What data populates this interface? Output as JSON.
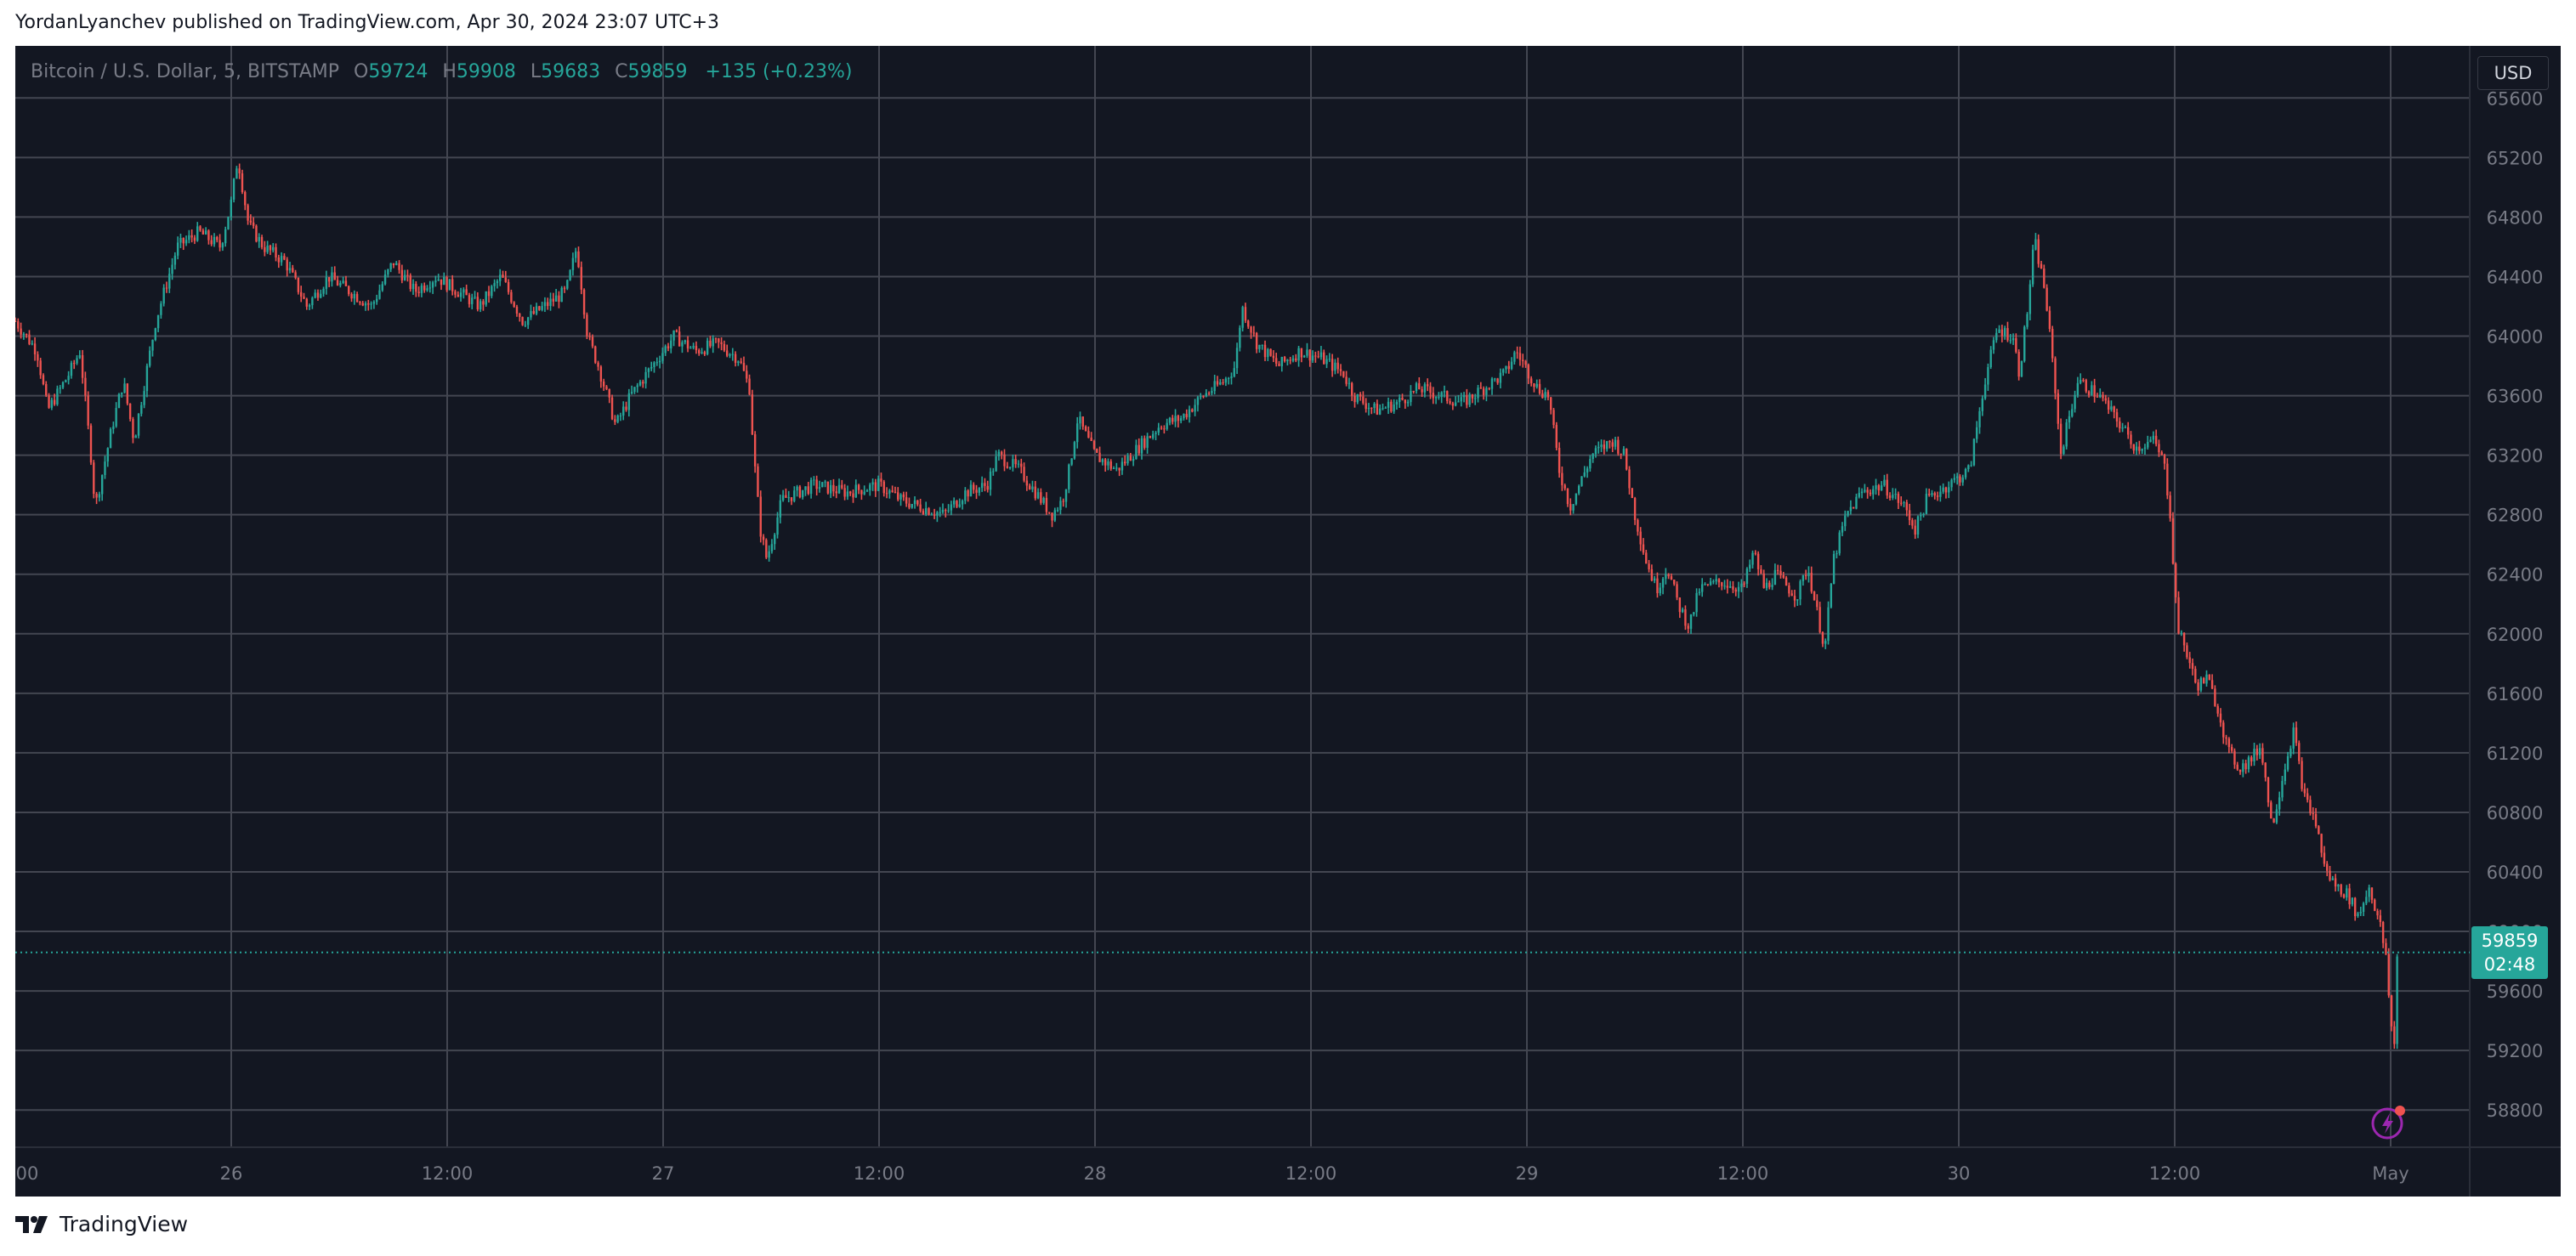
{
  "header": {
    "text": "YordanLyanchev published on TradingView.com, Apr 30, 2024 23:07 UTC+3"
  },
  "footer": {
    "brand": "TradingView"
  },
  "legend": {
    "symbol": "Bitcoin / U.S. Dollar, 5, BITSTAMP",
    "open_label": "O",
    "open": "59724",
    "high_label": "H",
    "high": "59908",
    "low_label": "L",
    "low": "59683",
    "close_label": "C",
    "close": "59859",
    "change": "+135 (+0.23%)"
  },
  "price_axis": {
    "unit": "USD",
    "last_price": "59859",
    "countdown": "02:48"
  },
  "colors": {
    "background": "#131722",
    "grid": "#434651",
    "up": "#26a69a",
    "down": "#ef5350",
    "text": "#787b86",
    "bolt": "#9c27b0"
  },
  "chart_data": {
    "type": "candlestick",
    "interval": "5",
    "ylim": [
      58550,
      65950
    ],
    "y_ticks": [
      58800,
      59200,
      59600,
      60000,
      60400,
      60800,
      61200,
      61600,
      62000,
      62400,
      62800,
      63200,
      63600,
      64000,
      64400,
      64800,
      65200,
      65600
    ],
    "y_tick_labels": [
      "58800",
      "59200",
      "59600",
      "60000",
      "60400",
      "60800",
      "61200",
      "61600",
      "62000",
      "62400",
      "62800",
      "63200",
      "63600",
      "64000",
      "64400",
      "64800",
      "65200",
      "65600"
    ],
    "x_ticks": [
      {
        "t": 0,
        "label": "00"
      },
      {
        "t": 1,
        "label": "26"
      },
      {
        "t": 2,
        "label": "12:00"
      },
      {
        "t": 3,
        "label": "27"
      },
      {
        "t": 4,
        "label": "12:00"
      },
      {
        "t": 5,
        "label": "28"
      },
      {
        "t": 6,
        "label": "12:00"
      },
      {
        "t": 7,
        "label": "29"
      },
      {
        "t": 8,
        "label": "12:00"
      },
      {
        "t": 9,
        "label": "30"
      },
      {
        "t": 10,
        "label": "12:00"
      },
      {
        "t": 11,
        "label": "May"
      }
    ],
    "xlim": [
      0,
      11.3
    ],
    "last_price": 59859,
    "price_path": [
      [
        0.0,
        64100
      ],
      [
        0.1,
        63900
      ],
      [
        0.15,
        63500
      ],
      [
        0.25,
        63750
      ],
      [
        0.3,
        63900
      ],
      [
        0.35,
        63200
      ],
      [
        0.37,
        62850
      ],
      [
        0.45,
        63400
      ],
      [
        0.5,
        63700
      ],
      [
        0.55,
        63300
      ],
      [
        0.65,
        64100
      ],
      [
        0.75,
        64600
      ],
      [
        0.85,
        64700
      ],
      [
        0.95,
        64600
      ],
      [
        1.0,
        64900
      ],
      [
        1.03,
        65200
      ],
      [
        1.08,
        64750
      ],
      [
        1.15,
        64600
      ],
      [
        1.25,
        64500
      ],
      [
        1.35,
        64200
      ],
      [
        1.45,
        64400
      ],
      [
        1.55,
        64300
      ],
      [
        1.65,
        64200
      ],
      [
        1.75,
        64500
      ],
      [
        1.85,
        64300
      ],
      [
        1.95,
        64400
      ],
      [
        2.05,
        64300
      ],
      [
        2.15,
        64200
      ],
      [
        2.25,
        64400
      ],
      [
        2.35,
        64100
      ],
      [
        2.45,
        64200
      ],
      [
        2.55,
        64300
      ],
      [
        2.6,
        64600
      ],
      [
        2.65,
        64000
      ],
      [
        2.7,
        63800
      ],
      [
        2.78,
        63400
      ],
      [
        2.85,
        63600
      ],
      [
        2.95,
        63800
      ],
      [
        3.05,
        64000
      ],
      [
        3.15,
        63900
      ],
      [
        3.25,
        63950
      ],
      [
        3.35,
        63850
      ],
      [
        3.4,
        63650
      ],
      [
        3.42,
        63200
      ],
      [
        3.45,
        62700
      ],
      [
        3.48,
        62500
      ],
      [
        3.55,
        62900
      ],
      [
        3.7,
        63000
      ],
      [
        3.85,
        62950
      ],
      [
        4.0,
        63000
      ],
      [
        4.1,
        62900
      ],
      [
        4.2,
        62850
      ],
      [
        4.3,
        62800
      ],
      [
        4.4,
        62950
      ],
      [
        4.5,
        63000
      ],
      [
        4.55,
        63200
      ],
      [
        4.65,
        63100
      ],
      [
        4.75,
        62900
      ],
      [
        4.8,
        62800
      ],
      [
        4.85,
        62900
      ],
      [
        4.88,
        63100
      ],
      [
        4.92,
        63450
      ],
      [
        5.0,
        63200
      ],
      [
        5.1,
        63100
      ],
      [
        5.2,
        63250
      ],
      [
        5.3,
        63400
      ],
      [
        5.4,
        63450
      ],
      [
        5.5,
        63600
      ],
      [
        5.6,
        63700
      ],
      [
        5.65,
        63800
      ],
      [
        5.68,
        64200
      ],
      [
        5.75,
        63950
      ],
      [
        5.85,
        63800
      ],
      [
        5.95,
        63900
      ],
      [
        6.05,
        63850
      ],
      [
        6.15,
        63750
      ],
      [
        6.2,
        63600
      ],
      [
        6.3,
        63500
      ],
      [
        6.4,
        63550
      ],
      [
        6.5,
        63650
      ],
      [
        6.6,
        63600
      ],
      [
        6.7,
        63550
      ],
      [
        6.8,
        63650
      ],
      [
        6.9,
        63750
      ],
      [
        6.95,
        63900
      ],
      [
        7.05,
        63650
      ],
      [
        7.1,
        63600
      ],
      [
        7.15,
        63100
      ],
      [
        7.2,
        62850
      ],
      [
        7.3,
        63200
      ],
      [
        7.4,
        63300
      ],
      [
        7.45,
        63200
      ],
      [
        7.5,
        62800
      ],
      [
        7.55,
        62500
      ],
      [
        7.6,
        62300
      ],
      [
        7.65,
        62450
      ],
      [
        7.7,
        62200
      ],
      [
        7.75,
        62050
      ],
      [
        7.8,
        62300
      ],
      [
        7.9,
        62350
      ],
      [
        8.0,
        62300
      ],
      [
        8.05,
        62550
      ],
      [
        8.1,
        62300
      ],
      [
        8.15,
        62400
      ],
      [
        8.25,
        62250
      ],
      [
        8.3,
        62450
      ],
      [
        8.35,
        62100
      ],
      [
        8.38,
        61900
      ],
      [
        8.42,
        62500
      ],
      [
        8.48,
        62800
      ],
      [
        8.55,
        62950
      ],
      [
        8.65,
        63000
      ],
      [
        8.75,
        62850
      ],
      [
        8.8,
        62700
      ],
      [
        8.85,
        62900
      ],
      [
        8.95,
        63000
      ],
      [
        9.05,
        63100
      ],
      [
        9.12,
        63700
      ],
      [
        9.18,
        64050
      ],
      [
        9.25,
        64000
      ],
      [
        9.28,
        63750
      ],
      [
        9.32,
        64200
      ],
      [
        9.35,
        64650
      ],
      [
        9.4,
        64300
      ],
      [
        9.45,
        63600
      ],
      [
        9.47,
        63200
      ],
      [
        9.55,
        63700
      ],
      [
        9.65,
        63600
      ],
      [
        9.75,
        63400
      ],
      [
        9.82,
        63250
      ],
      [
        9.9,
        63300
      ],
      [
        9.95,
        63150
      ],
      [
        9.98,
        62800
      ],
      [
        10.0,
        62300
      ],
      [
        10.02,
        62000
      ],
      [
        10.05,
        61900
      ],
      [
        10.1,
        61650
      ],
      [
        10.15,
        61700
      ],
      [
        10.2,
        61500
      ],
      [
        10.25,
        61200
      ],
      [
        10.3,
        61100
      ],
      [
        10.35,
        61150
      ],
      [
        10.4,
        61250
      ],
      [
        10.45,
        60700
      ],
      [
        10.5,
        61050
      ],
      [
        10.55,
        61350
      ],
      [
        10.6,
        60900
      ],
      [
        10.65,
        60750
      ],
      [
        10.7,
        60400
      ],
      [
        10.75,
        60300
      ],
      [
        10.8,
        60250
      ],
      [
        10.85,
        60100
      ],
      [
        10.9,
        60300
      ],
      [
        10.95,
        60050
      ],
      [
        10.98,
        59800
      ],
      [
        11.0,
        59400
      ],
      [
        11.02,
        59200
      ],
      [
        11.03,
        59859
      ]
    ]
  }
}
